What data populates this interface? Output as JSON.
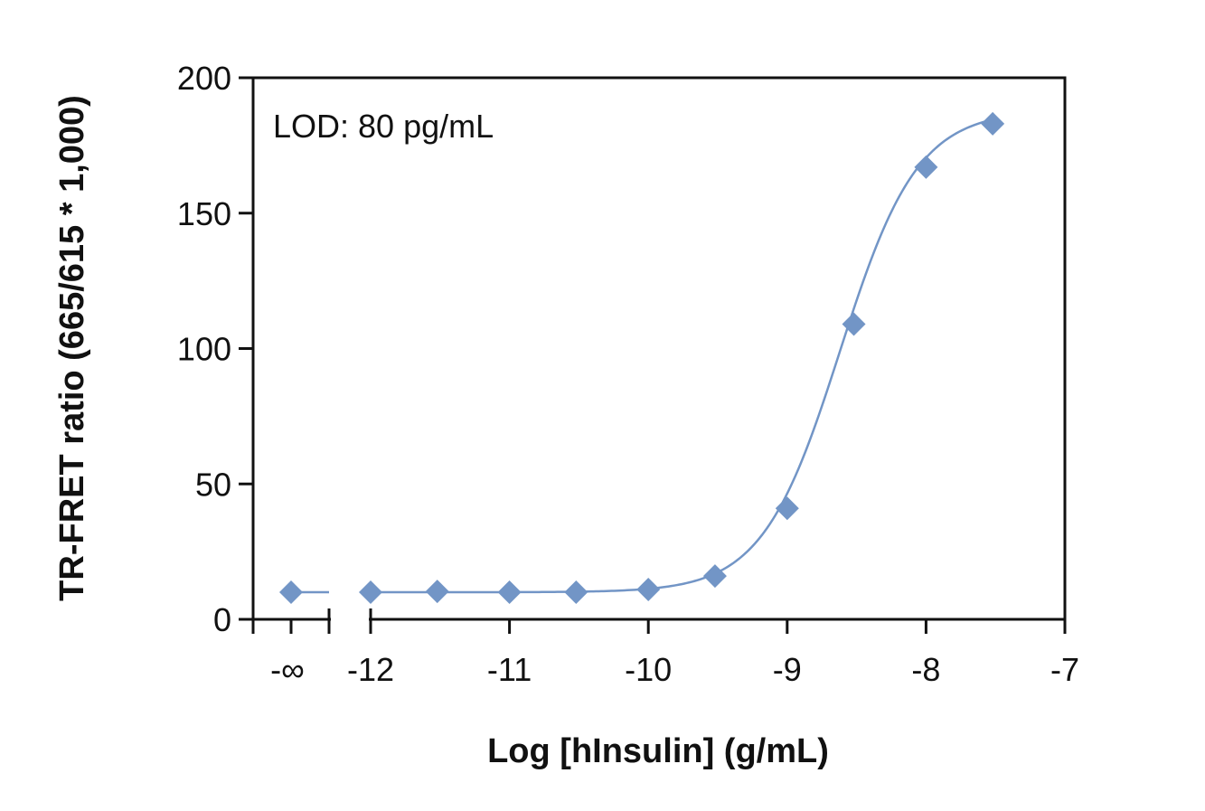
{
  "chart_data": {
    "type": "scatter",
    "annotation": "LOD: 80 pg/mL",
    "xlabel": "Log [hInsulin] (g/mL)",
    "ylabel": "TR-FRET ratio (665/615 * 1,000)",
    "xlim": [
      -12,
      -7
    ],
    "ylim": [
      0,
      200
    ],
    "x_ticks": [
      {
        "value": -12,
        "label": "-12"
      },
      {
        "value": -11,
        "label": "-11"
      },
      {
        "value": -10,
        "label": "-10"
      },
      {
        "value": -9,
        "label": "-9"
      },
      {
        "value": -8,
        "label": "-8"
      },
      {
        "value": -7,
        "label": "-7"
      }
    ],
    "x_minor_ticks": [
      -11.5,
      -10.5,
      -9.5,
      -8.5,
      -7.5
    ],
    "y_ticks": [
      {
        "value": 0,
        "label": "0"
      },
      {
        "value": 50,
        "label": "50"
      },
      {
        "value": 100,
        "label": "100"
      },
      {
        "value": 150,
        "label": "150"
      },
      {
        "value": 200,
        "label": "200"
      }
    ],
    "zero_dose": {
      "label": "-∞",
      "y": 10
    },
    "axis_break": true,
    "grid": false,
    "legend": false,
    "marker": "diamond",
    "color": "#7295c6",
    "points": [
      {
        "x": -12,
        "y": 10
      },
      {
        "x": -11.52,
        "y": 10.3
      },
      {
        "x": -11,
        "y": 10
      },
      {
        "x": -10.52,
        "y": 10
      },
      {
        "x": -10,
        "y": 11
      },
      {
        "x": -9.52,
        "y": 16
      },
      {
        "x": -9,
        "y": 41
      },
      {
        "x": -8.52,
        "y": 109
      },
      {
        "x": -8,
        "y": 167
      },
      {
        "x": -7.52,
        "y": 183
      }
    ],
    "fit": {
      "model": "4PL",
      "bottom": 10,
      "top": 188,
      "log_ec50": -8.62,
      "hill": 1.55,
      "x_range": [
        -12,
        -7.52
      ]
    }
  }
}
